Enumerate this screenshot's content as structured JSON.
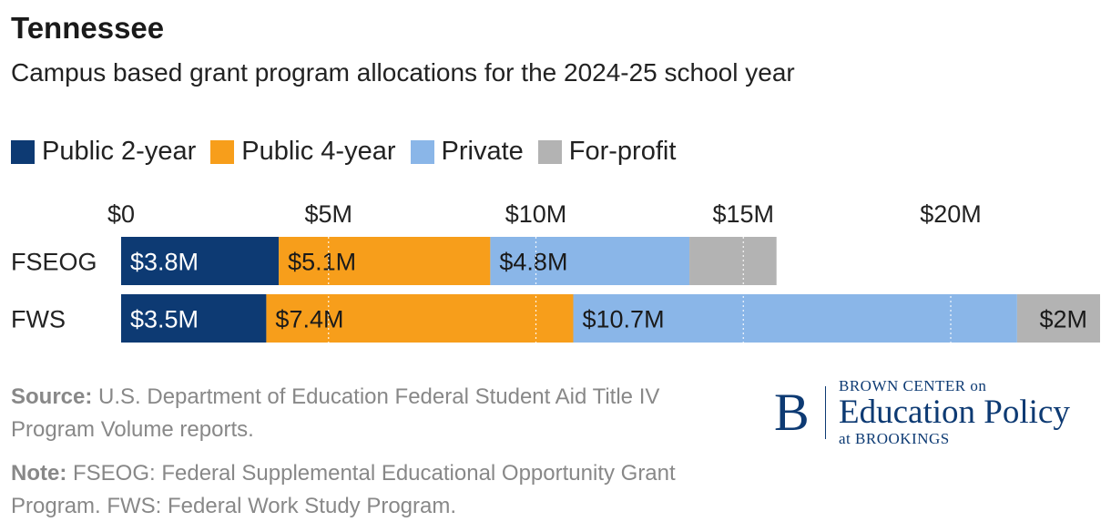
{
  "header": {
    "title": "Tennessee",
    "subtitle": "Campus based grant program allocations for the 2024-25 school year"
  },
  "legend": [
    {
      "label": "Public 2-year",
      "color": "#0d3a73"
    },
    {
      "label": "Public 4-year",
      "color": "#f79e1b"
    },
    {
      "label": "Private",
      "color": "#8ab6e8"
    },
    {
      "label": "For-profit",
      "color": "#b3b3b3"
    }
  ],
  "chart_data": {
    "type": "bar",
    "orientation": "horizontal",
    "stacked": true,
    "categories": [
      "FSEOG",
      "FWS"
    ],
    "series": [
      {
        "name": "Public 2-year",
        "values": [
          3.8,
          3.5
        ],
        "labels": [
          "$3.8M",
          "$3.5M"
        ]
      },
      {
        "name": "Public 4-year",
        "values": [
          5.1,
          7.4
        ],
        "labels": [
          "$5.1M",
          "$7.4M"
        ]
      },
      {
        "name": "Private",
        "values": [
          4.8,
          10.7
        ],
        "labels": [
          "$4.8M",
          "$10.7M"
        ]
      },
      {
        "name": "For-profit",
        "values": [
          2.1,
          2.0
        ],
        "labels": [
          "",
          "$2M"
        ]
      }
    ],
    "x_ticks": [
      0,
      5,
      10,
      15,
      20
    ],
    "x_tick_labels": [
      "$0",
      "$5M",
      "$10M",
      "$15M",
      "$20M"
    ],
    "xlim": [
      0,
      23.6
    ],
    "grid": true,
    "legend_position": "top-left"
  },
  "footer": {
    "source_label": "Source:",
    "source_text": " U.S. Department of Education Federal Student Aid Title IV Program Volume reports.",
    "note_label": "Note:",
    "note_text": " FSEOG: Federal Supplemental Educational Opportunity Grant Program. FWS: Federal Work Study Program."
  },
  "logo": {
    "mark": "B",
    "top": "BROWN CENTER on",
    "main": "Education Policy",
    "bottom": "at BROOKINGS"
  }
}
